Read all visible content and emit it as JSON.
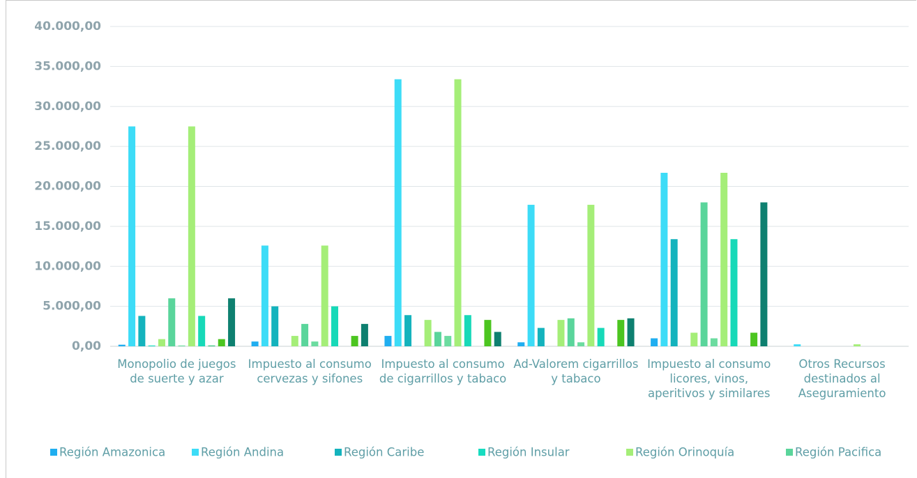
{
  "chart_data": {
    "type": "bar",
    "categories": [
      "Monopolio de juegos de suerte y azar",
      "Impuesto al consumo cervezas y sifones",
      "Impuesto al consumo de cigarrillos y tabaco",
      "Ad-Valorem cigarrillos y tabaco",
      "Impuesto al consumo licores, vinos, aperitivos y similares",
      "Otros Recursos destinados al Aseguramiento"
    ],
    "series": [
      {
        "name": "Región Amazonica",
        "color": "#20aef0",
        "values": [
          200,
          600,
          1300,
          500,
          1000,
          0
        ]
      },
      {
        "name": "Región Andina",
        "color": "#3ddcf7",
        "values": [
          27500,
          12600,
          33400,
          17700,
          21700,
          250
        ]
      },
      {
        "name": "Región Caribe",
        "color": "#14b3bd",
        "values": [
          3800,
          5000,
          3900,
          2300,
          13400,
          0
        ]
      },
      {
        "name": "Región Insular",
        "color": "#17dcc0",
        "values": [
          100,
          0,
          0,
          0,
          0,
          0
        ]
      },
      {
        "name": "Región Orinoquía",
        "color": "#a5ee78",
        "values": [
          900,
          1300,
          3300,
          3300,
          1700,
          0
        ]
      },
      {
        "name": "Región Pacifica",
        "color": "#5ad59b",
        "values": [
          6000,
          2800,
          1800,
          3500,
          18000,
          0
        ]
      },
      {
        "color": "#6cdca0",
        "values": [
          100,
          600,
          1300,
          500,
          1000,
          0
        ]
      },
      {
        "color": "#a5ee78",
        "values": [
          27500,
          12600,
          33400,
          17700,
          21700,
          250
        ]
      },
      {
        "color": "#17d9b8",
        "values": [
          3800,
          5000,
          3900,
          2300,
          13400,
          0
        ]
      },
      {
        "color": "#2ec27a",
        "values": [
          100,
          0,
          0,
          0,
          0,
          0
        ]
      },
      {
        "color": "#4cc520",
        "values": [
          900,
          1300,
          3300,
          3300,
          1700,
          0
        ]
      },
      {
        "color": "#0e8070",
        "values": [
          6000,
          2800,
          1800,
          3500,
          18000,
          0
        ]
      }
    ],
    "ylim": [
      0,
      40000
    ],
    "yticks": [
      {
        "value": 0,
        "label": "0,00"
      },
      {
        "value": 5000,
        "label": "5.000,00"
      },
      {
        "value": 10000,
        "label": "10.000,00"
      },
      {
        "value": 15000,
        "label": "15.000,00"
      },
      {
        "value": 20000,
        "label": "20.000,00"
      },
      {
        "value": 25000,
        "label": "25.000,00"
      },
      {
        "value": 30000,
        "label": "30.000,00"
      },
      {
        "value": 35000,
        "label": "35.000,00"
      },
      {
        "value": 40000,
        "label": "40.000,00"
      }
    ],
    "grid": true,
    "legend": "bottom"
  }
}
